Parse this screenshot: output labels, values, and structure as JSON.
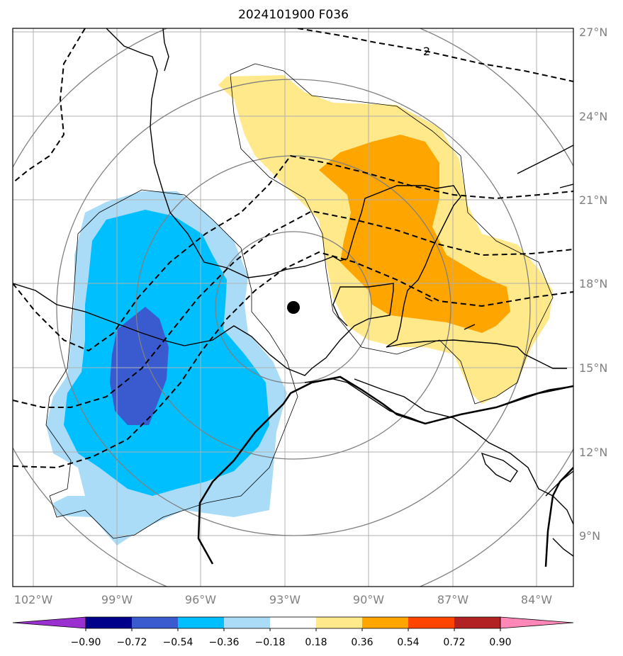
{
  "title": "2024101900 F036",
  "lat_labels": [
    "27°N",
    "24°N",
    "21°N",
    "18°N",
    "15°N",
    "12°N",
    "9°N"
  ],
  "lon_labels": [
    "102°W",
    "99°W",
    "96°W",
    "93°W",
    "90°W",
    "87°W",
    "84°W"
  ],
  "contour_label": "2",
  "colorbar": {
    "tick_labels": [
      "−0.90",
      "−0.72",
      "−0.54",
      "−0.36",
      "−0.18",
      "0.18",
      "0.36",
      "0.54",
      "0.72",
      "0.90"
    ],
    "colors": [
      "#9a30d0",
      "#00008b",
      "#3a5bcf",
      "#00bfff",
      "#aadcf8",
      "#ffffff",
      "#ffe98a",
      "#ffa500",
      "#ff4500",
      "#b22222",
      "#ff88b8"
    ]
  },
  "fill_colors": {
    "light_blue": "#aadcf8",
    "blue": "#00bfff",
    "dark_blue": "#3a5bcf",
    "light_yellow": "#ffe98a",
    "orange": "#ffa500"
  },
  "storm_marker": "center-dot"
}
